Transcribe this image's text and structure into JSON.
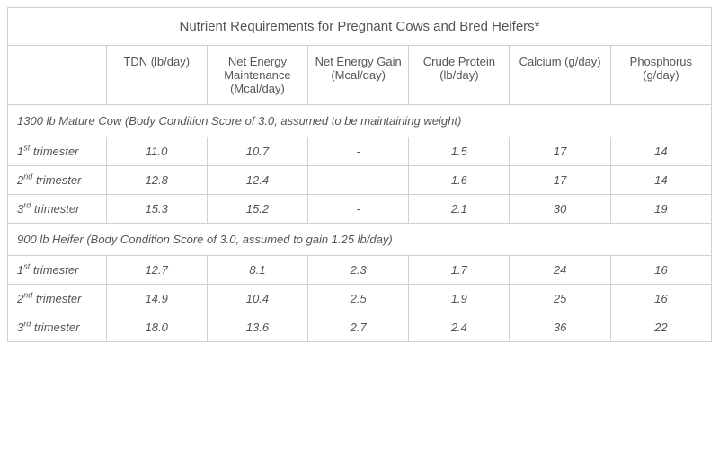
{
  "title": "Nutrient Requirements for Pregnant Cows and Bred Heifers*",
  "columns": [
    "TDN (lb/day)",
    "Net Energy Maintenance (Mcal/day)",
    "Net Energy Gain (Mcal/day)",
    "Crude Protein (lb/day)",
    "Calcium (g/day)",
    "Phosphorus (g/day)"
  ],
  "sections": [
    {
      "heading": "1300 lb Mature Cow (Body Condition Score of 3.0, assumed to be maintaining weight)",
      "rows": [
        {
          "label_pre": "1",
          "label_sup": "st",
          "label_post": " trimester",
          "v": [
            "11.0",
            "10.7",
            "-",
            "1.5",
            "17",
            "14"
          ]
        },
        {
          "label_pre": "2",
          "label_sup": "nd",
          "label_post": " trimester",
          "v": [
            "12.8",
            "12.4",
            "-",
            "1.6",
            "17",
            "14"
          ]
        },
        {
          "label_pre": "3",
          "label_sup": "rd",
          "label_post": " trimester",
          "v": [
            "15.3",
            "15.2",
            "-",
            "2.1",
            "30",
            "19"
          ]
        }
      ]
    },
    {
      "heading": "900 lb Heifer (Body Condition Score of 3.0, assumed to gain 1.25 lb/day)",
      "rows": [
        {
          "label_pre": "1",
          "label_sup": "st",
          "label_post": " trimester",
          "v": [
            "12.7",
            "8.1",
            "2.3",
            "1.7",
            "24",
            "16"
          ]
        },
        {
          "label_pre": "2",
          "label_sup": "nd",
          "label_post": " trimester",
          "v": [
            "14.9",
            "10.4",
            "2.5",
            "1.9",
            "25",
            "16"
          ]
        },
        {
          "label_pre": "3",
          "label_sup": "rd",
          "label_post": " trimester",
          "v": [
            "18.0",
            "13.6",
            "2.7",
            "2.4",
            "36",
            "22"
          ]
        }
      ]
    }
  ],
  "style": {
    "border_color": "#d0d0d0",
    "text_color": "#555555",
    "background": "#ffffff",
    "title_fontsize": 15,
    "header_fontsize": 13,
    "cell_fontsize": 13
  }
}
